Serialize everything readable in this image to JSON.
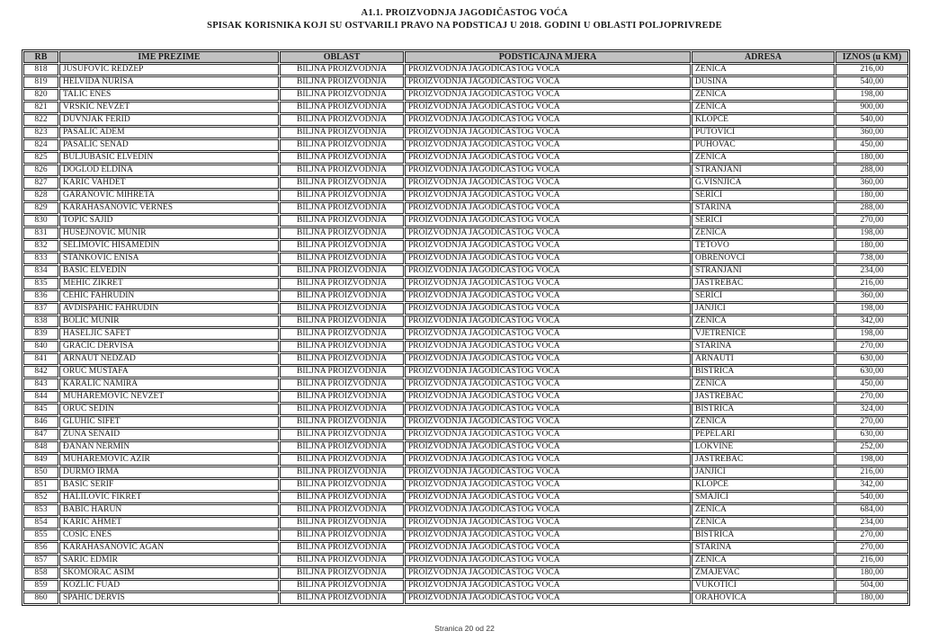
{
  "title_line1": "A1.1. PROIZVODNJA JAGODIČASTOG VOĆA",
  "title_line2": "SPISAK KORISNIKA KOJI SU OSTVARILI PRAVO NA PODSTICAJ U 2018. GODINI U OBLASTI POLJOPRIVREDE",
  "footer": "Stranica 20 od 22",
  "table": {
    "headers": [
      "RB",
      "IME PREZIME",
      "OBLAST",
      "PODSTICAJNA MJERA",
      "ADRESA",
      "IZNOS (u KM)"
    ],
    "oblast_all": "BILJNA PROIZVODNJA",
    "mjera_all": "PROIZVODNJA JAGODIČASTOG VOĆA",
    "rows": [
      [
        "818",
        "JUSUFOVIĆ REDŽEP",
        "ZENICA",
        "216,00"
      ],
      [
        "819",
        "HELVIDA NURISA",
        "DUSINA",
        "540,00"
      ],
      [
        "820",
        "TALIĆ ENES",
        "ZENICA",
        "198,00"
      ],
      [
        "821",
        "VRŠKIĆ NEVZET",
        "ZENICA",
        "900,00"
      ],
      [
        "822",
        "DUVNJAK FERID",
        "KLOPČE",
        "540,00"
      ],
      [
        "823",
        "PAŠALIĆ ADEM",
        "PUTOVIĆI",
        "360,00"
      ],
      [
        "824",
        "PAŠALIĆ SENAD",
        "PUHOVAC",
        "450,00"
      ],
      [
        "825",
        "BULJUBAŠIĆ ELVEDIN",
        "ZENICA",
        "180,00"
      ],
      [
        "826",
        "DOGLOD ELDINA",
        "STRANJANI",
        "288,00"
      ],
      [
        "827",
        "KARIĆ VAHDET",
        "G.VIŠNJICA",
        "360,00"
      ],
      [
        "828",
        "GARANOVIĆ MIHRETA",
        "ŠERIĆI",
        "180,00"
      ],
      [
        "829",
        "KARAHASANOVIĆ VERNES",
        "STARINA",
        "288,00"
      ],
      [
        "830",
        "TOPIĆ SAJID",
        "ŠERIĆI",
        "270,00"
      ],
      [
        "831",
        "HUSEJNOVIĆ MUNIR",
        "ZENICA",
        "198,00"
      ],
      [
        "832",
        "SELIMOVIĆ HISAMEDIN",
        "TETOVO",
        "180,00"
      ],
      [
        "833",
        "STANKOVIĆ ENISA",
        "OBRENOVCI",
        "738,00"
      ],
      [
        "834",
        "BAŠIĆ ELVEDIN",
        "STRANJANI",
        "234,00"
      ],
      [
        "835",
        "MEHIĆ ZIKRET",
        "JASTREBAC",
        "216,00"
      ],
      [
        "836",
        "ČEHIĆ FAHRUDIN",
        "ŠERIĆI",
        "360,00"
      ],
      [
        "837",
        "AVDISPAHIĆ FAHRUDIN",
        "JANJIĆI",
        "198,00"
      ],
      [
        "838",
        "BOLIĆ MUNIR",
        "ZENICA",
        "342,00"
      ],
      [
        "839",
        "HASELJIĆ SAFET",
        "VJETRENICE",
        "198,00"
      ],
      [
        "840",
        "GRAČIĆ DERVIŠA",
        "STARINA",
        "270,00"
      ],
      [
        "841",
        "ARNAUT NEDŽAD",
        "ARNAUTI",
        "630,00"
      ],
      [
        "842",
        "ORUČ MUSTAFA",
        "BISTRICA",
        "630,00"
      ],
      [
        "843",
        "KARALIĆ NAMIRA",
        "ZENICA",
        "450,00"
      ],
      [
        "844",
        "MUHAREMOVIĆ NEVZET",
        "JASTREBAC",
        "270,00"
      ],
      [
        "845",
        "ORUČ SEDIN",
        "BISTRICA",
        "324,00"
      ],
      [
        "846",
        "GLUHIĆ SIFET",
        "ZENICA",
        "270,00"
      ],
      [
        "847",
        "ŽUNA SENAID",
        "PEPELARI",
        "630,00"
      ],
      [
        "848",
        "ĐANAN NERMIN",
        "LOKVINE",
        "252,00"
      ],
      [
        "849",
        "MUHAREMOVIĆ AZIR",
        "JASTREBAC",
        "198,00"
      ],
      [
        "850",
        "DURMO IRMA",
        "JANJIĆI",
        "216,00"
      ],
      [
        "851",
        "BAŠIĆ ŠERIF",
        "KLOPČE",
        "342,00"
      ],
      [
        "852",
        "HALILOVIĆ FIKRET",
        "SMAJIĆI",
        "540,00"
      ],
      [
        "853",
        "BABIĆ HARUN",
        "ZENICA",
        "684,00"
      ],
      [
        "854",
        "KARIĆ AHMET",
        "ZENICA",
        "234,00"
      ],
      [
        "855",
        "ĆOSIĆ ENES",
        "BISTRICA",
        "270,00"
      ],
      [
        "856",
        "KARAHASANOVIĆ AGAN",
        "STARINA",
        "270,00"
      ],
      [
        "857",
        "ŠARIĆ EDMIR",
        "ZENICA",
        "216,00"
      ],
      [
        "858",
        "SKOMORAC ASIM",
        "ZMAJEVAC",
        "180,00"
      ],
      [
        "859",
        "KOZLIĆ FUAD",
        "VUKOTIĆI",
        "504,00"
      ],
      [
        "860",
        "SPAHIĆ DERVIŠ",
        "ORAHOVICA",
        "180,00"
      ]
    ]
  }
}
